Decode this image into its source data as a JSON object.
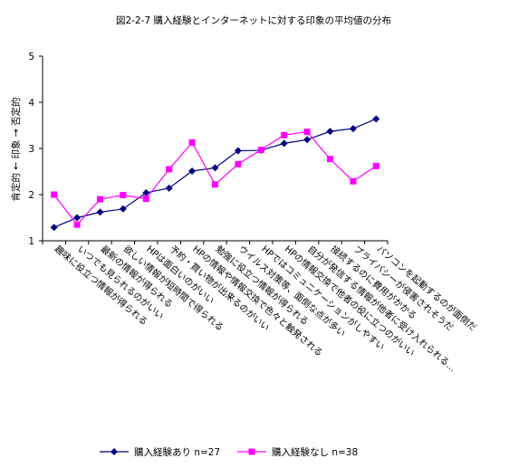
{
  "chart_data": {
    "type": "line",
    "title": "図2-2-7  購入経験とインターネットに対する印象の平均値の分布",
    "ylabel": "肯定的 ← 印象 → 否定的",
    "ylim": [
      1,
      5
    ],
    "yticks": [
      "1",
      "2",
      "3",
      "4",
      "5"
    ],
    "grid": false,
    "legend_position": "bottom",
    "categories": [
      "趣味に役立つ情報が得られる",
      "いつでも見られるのがいい",
      "最新の情報が得られる",
      "欲しい情報が短時間で得られる",
      "HPは面白いのがいい",
      "予約・買い物が出来るのがいい",
      "HPの情報や情報交換で色々と触発される",
      "勉強に役立つ情報が得られる",
      "ウイルス対策等、面倒な点が多い",
      "HPではコミュニケーションがしやすい",
      "HPの情報交換で他者の役に立つのがいい",
      "自分が発信する情報が他者に受け入れられる…",
      "接続するのに費用がかかる",
      "プライバシーが侵害されそうだ",
      "パソコンを起動するのが面倒だ"
    ],
    "series": [
      {
        "name": "購入経験あり  n=27",
        "color": "#000080",
        "marker": "diamond",
        "values": [
          1.29,
          1.5,
          1.62,
          1.69,
          2.04,
          2.14,
          2.51,
          2.58,
          2.95,
          2.96,
          3.11,
          3.19,
          3.37,
          3.43,
          3.64
        ]
      },
      {
        "name": "購入経験なし  n=38",
        "color": "#ff00ff",
        "marker": "square",
        "values": [
          2.0,
          1.35,
          1.9,
          1.99,
          1.91,
          2.55,
          3.13,
          2.22,
          2.66,
          2.97,
          3.29,
          3.36,
          2.77,
          2.29,
          2.62
        ]
      }
    ]
  }
}
